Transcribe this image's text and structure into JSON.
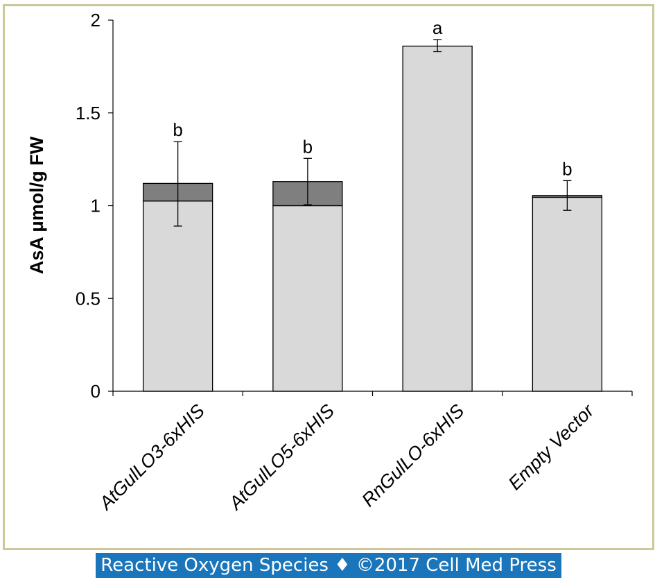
{
  "chart_data": {
    "type": "bar",
    "stacked": true,
    "ylabel": "AsA μmol/g FW",
    "xlabel": "",
    "ylim": [
      0,
      2
    ],
    "yticks": [
      0,
      0.5,
      1,
      1.5,
      2
    ],
    "ytick_labels": [
      "0",
      "0.5",
      "1",
      "1.5",
      "2"
    ],
    "categories": [
      "AtGulLO3-6xHIS",
      "AtGulLO5-6xHIS",
      "RnGulLO-6xHIS",
      "Empty Vector"
    ],
    "series": [
      {
        "values": [
          1.025,
          1.0,
          1.86,
          1.045
        ],
        "color": "#d9d9d9"
      },
      {
        "values": [
          0.095,
          0.13,
          0.0,
          0.01
        ],
        "color": "#7f7f7f"
      }
    ],
    "error_bars": [
      {
        "center": 1.12,
        "plus": 0.225,
        "minus": 0.23
      },
      {
        "center": 1.13,
        "plus": 0.125,
        "minus": 0.125
      },
      {
        "center": 1.86,
        "plus": 0.035,
        "minus": 0.03
      },
      {
        "center": 1.055,
        "plus": 0.08,
        "minus": 0.08
      }
    ],
    "annotations": [
      "b",
      "b",
      "a",
      "b"
    ],
    "grid": false,
    "legend": "none"
  },
  "footer": "Reactive Oxygen Species ♦ ©2017 Cell Med Press"
}
